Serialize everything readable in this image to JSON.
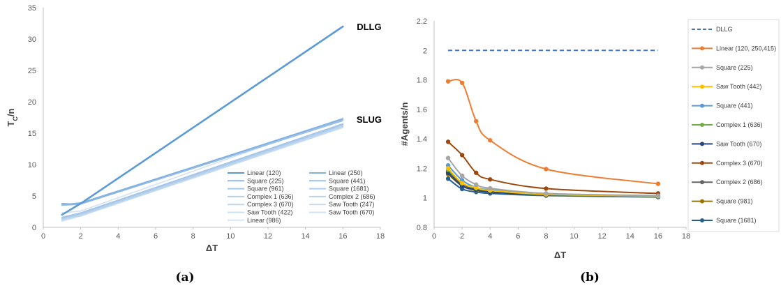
{
  "chart_data": [
    {
      "panel": "a",
      "type": "line",
      "xlabel": "ΔT",
      "ylabel_main": "T",
      "ylabel_sub": "C",
      "ylabel_tail": "/n",
      "xlim": [
        0,
        18
      ],
      "ylim": [
        0,
        35
      ],
      "xticks": [
        0,
        2,
        4,
        6,
        8,
        10,
        12,
        14,
        16,
        18
      ],
      "yticks": [
        0,
        5,
        10,
        15,
        20,
        25,
        30,
        35
      ],
      "grid": false,
      "annotations": [
        {
          "text": "DLLG",
          "x": 17.4,
          "y": 32
        },
        {
          "text": "SLUG",
          "x": 17.4,
          "y": 17.2
        }
      ],
      "legend_position": "bottom-right",
      "legend_columns": 2,
      "series": [
        {
          "name": "Linear (120)",
          "color": "#5b9bd5",
          "width": 2.6,
          "x": [
            1,
            2,
            16
          ],
          "y": [
            2.0,
            3.8,
            32.0
          ]
        },
        {
          "name": "Linear (250)",
          "color": "#80b1e0",
          "width": 1.8,
          "x": [
            1,
            1.5,
            2,
            16
          ],
          "y": [
            3.8,
            3.7,
            3.8,
            17.3
          ]
        },
        {
          "name": "Square (225)",
          "color": "#8fb8e2",
          "width": 1.8,
          "x": [
            1,
            2,
            16
          ],
          "y": [
            3.6,
            3.9,
            17.2
          ]
        },
        {
          "name": "Square (441)",
          "color": "#9dc1e6",
          "width": 1.8,
          "x": [
            1,
            2,
            16
          ],
          "y": [
            3.5,
            3.7,
            17.0
          ]
        },
        {
          "name": "Square (961)",
          "color": "#a5c6e8",
          "width": 1.8,
          "x": [
            1,
            2,
            16
          ],
          "y": [
            1.6,
            2.3,
            16.5
          ]
        },
        {
          "name": "Square (1681)",
          "color": "#adcbea",
          "width": 1.8,
          "x": [
            1,
            2,
            16
          ],
          "y": [
            1.5,
            2.2,
            16.4
          ]
        },
        {
          "name": "Complex 1 (636)",
          "color": "#b4d0ec",
          "width": 1.8,
          "x": [
            1,
            2,
            16
          ],
          "y": [
            1.4,
            2.1,
            16.3
          ]
        },
        {
          "name": "Complex 2 (686)",
          "color": "#bad4ee",
          "width": 1.8,
          "x": [
            1,
            2,
            16
          ],
          "y": [
            1.3,
            2.0,
            16.2
          ]
        },
        {
          "name": "Complex 3 (670)",
          "color": "#c0d8ef",
          "width": 1.8,
          "x": [
            1,
            2,
            16
          ],
          "y": [
            1.3,
            1.9,
            16.1
          ]
        },
        {
          "name": "Saw Tooth (247)",
          "color": "#c6dbf1",
          "width": 1.8,
          "x": [
            1,
            2,
            16
          ],
          "y": [
            1.2,
            1.9,
            16.0
          ]
        },
        {
          "name": "Saw Tooth (422)",
          "color": "#cbdff2",
          "width": 1.8,
          "x": [
            1,
            2,
            16
          ],
          "y": [
            1.1,
            1.8,
            15.9
          ]
        },
        {
          "name": "Saw Tooth (670)",
          "color": "#d0e2f4",
          "width": 1.8,
          "x": [
            1,
            2,
            16
          ],
          "y": [
            1.0,
            1.8,
            16.2
          ]
        },
        {
          "name": "Linear (986)",
          "color": "#d6e5f5",
          "width": 1.8,
          "x": [
            1,
            2,
            16
          ],
          "y": [
            2.3,
            2.6,
            17.4
          ]
        }
      ]
    },
    {
      "panel": "b",
      "type": "line",
      "xlabel": "ΔT",
      "ylabel": "#Agents/n",
      "xlim": [
        0,
        18
      ],
      "ylim": [
        0.8,
        2.2
      ],
      "xticks": [
        0,
        2,
        4,
        6,
        8,
        10,
        12,
        14,
        16,
        18
      ],
      "yticks": [
        0.8,
        1,
        1.2,
        1.4,
        1.6,
        1.8,
        2,
        2.2
      ],
      "grid": false,
      "legend_position": "right",
      "series": [
        {
          "name": "DLLG",
          "color": "#4472c4",
          "dashed": true,
          "markers": false,
          "x": [
            1,
            16
          ],
          "y": [
            2.0,
            2.0
          ]
        },
        {
          "name": "Linear (120, 250,415)",
          "color": "#ed7d31",
          "markers": true,
          "x": [
            1,
            2,
            3,
            4,
            8,
            16
          ],
          "y": [
            1.79,
            1.78,
            1.52,
            1.39,
            1.195,
            1.095
          ]
        },
        {
          "name": "Square (225)",
          "color": "#a5a5a5",
          "markers": true,
          "x": [
            1,
            2,
            3,
            4,
            8,
            16
          ],
          "y": [
            1.27,
            1.15,
            1.09,
            1.065,
            1.03,
            1.015
          ]
        },
        {
          "name": "Saw Tooth (442)",
          "color": "#ffc000",
          "markers": true,
          "x": [
            1,
            2,
            3,
            4,
            8,
            16
          ],
          "y": [
            1.2,
            1.1,
            1.07,
            1.05,
            1.025,
            1.012
          ]
        },
        {
          "name": "Square (441)",
          "color": "#5b9bd5",
          "markers": true,
          "x": [
            1,
            2,
            3,
            4,
            8,
            16
          ],
          "y": [
            1.22,
            1.12,
            1.07,
            1.055,
            1.025,
            1.012
          ]
        },
        {
          "name": "Complex 1 (636)",
          "color": "#70ad47",
          "markers": true,
          "x": [
            1,
            2,
            3,
            4,
            8,
            16
          ],
          "y": [
            1.19,
            1.1,
            1.065,
            1.05,
            1.022,
            1.01
          ]
        },
        {
          "name": "Saw Tooth (670)",
          "color": "#264478",
          "markers": true,
          "x": [
            1,
            2,
            3,
            4,
            8,
            16
          ],
          "y": [
            1.17,
            1.08,
            1.055,
            1.04,
            1.02,
            1.008
          ]
        },
        {
          "name": "Complex 3 (670)",
          "color": "#9e480e",
          "markers": true,
          "x": [
            1,
            2,
            3,
            4,
            8,
            16
          ],
          "y": [
            1.38,
            1.29,
            1.17,
            1.125,
            1.063,
            1.03
          ]
        },
        {
          "name": "Complex 2 (686)",
          "color": "#636363",
          "markers": true,
          "x": [
            1,
            2,
            3,
            4,
            8,
            16
          ],
          "y": [
            1.18,
            1.09,
            1.06,
            1.045,
            1.02,
            1.01
          ]
        },
        {
          "name": "Square (981)",
          "color": "#997300",
          "markers": true,
          "x": [
            1,
            2,
            3,
            4,
            8,
            16
          ],
          "y": [
            1.16,
            1.08,
            1.05,
            1.04,
            1.018,
            1.008
          ]
        },
        {
          "name": "Square (1681)",
          "color": "#255e91",
          "markers": true,
          "x": [
            1,
            2,
            3,
            4,
            8,
            16
          ],
          "y": [
            1.13,
            1.06,
            1.04,
            1.03,
            1.015,
            1.005
          ]
        }
      ]
    }
  ],
  "captions": {
    "a": "(a)",
    "b": "(b)"
  }
}
